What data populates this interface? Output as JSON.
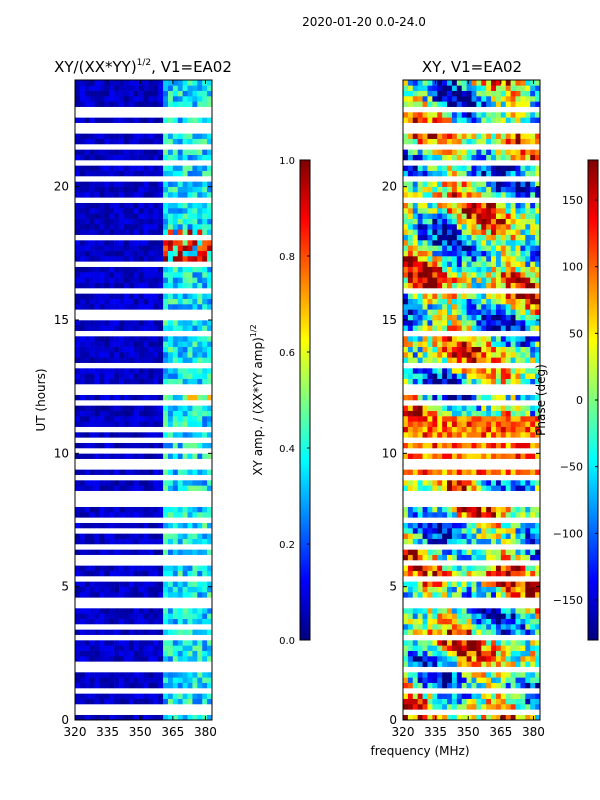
{
  "figure": {
    "suptitle": "2020-01-20 0.0-24.0",
    "xlabel": "frequency (MHz)"
  },
  "colormap": [
    "#00007f",
    "#0000ff",
    "#007fff",
    "#00ffff",
    "#7fff7f",
    "#ffff00",
    "#ff7f00",
    "#ff0000",
    "#7f0000"
  ],
  "chart_data": [
    {
      "type": "heatmap",
      "title": "XY/(XX*YY)",
      "title_exponent": "1/2",
      "title_suffix": ", V1=EA02",
      "xlabel": "",
      "ylabel": "UT (hours)",
      "xlim": [
        320,
        383
      ],
      "ylim": [
        0,
        24
      ],
      "xticks": [
        "320",
        "335",
        "350",
        "365",
        "380"
      ],
      "xtick_values": [
        320,
        335,
        350,
        365,
        380
      ],
      "yticks": [
        "0",
        "5",
        "10",
        "15",
        "20"
      ],
      "ytick_values": [
        0,
        5,
        10,
        15,
        20
      ],
      "rfi_band_mhz": [
        361,
        382
      ],
      "flagged_hours": [
        0.35,
        0.45,
        1.1,
        1.9,
        2.05,
        2.6,
        3.2,
        3.5,
        4.3,
        4.55,
        5.2,
        5.8,
        6.0,
        6.2,
        6.5,
        7.1,
        7.6,
        8.05,
        8.25,
        8.5,
        9.2,
        9.6,
        10.0,
        10.5,
        11.0,
        11.8,
        12.3,
        12.4,
        12.55,
        13.3,
        14.5,
        15.2,
        16.1,
        16.8,
        17.1,
        17.6,
        18.1,
        19.2,
        19.5,
        19.8,
        20.3,
        20.4,
        20.9,
        21.5,
        22.1,
        22.3,
        22.6,
        23.0
      ],
      "colorbar": {
        "label_prefix": "XY amp. / (XX*YY amp)",
        "label_exponent": "1/2",
        "range": [
          0.0,
          1.0
        ],
        "ticks": [
          "0.0",
          "0.2",
          "0.4",
          "0.6",
          "0.8",
          "1.0"
        ],
        "tick_values": [
          0.0,
          0.2,
          0.4,
          0.6,
          0.8,
          1.0
        ]
      }
    },
    {
      "type": "heatmap",
      "title": "XY, V1=EA02",
      "xlabel": "",
      "ylabel": "",
      "xlim": [
        320,
        383
      ],
      "ylim": [
        0,
        24
      ],
      "xticks": [
        "320",
        "335",
        "350",
        "365",
        "380"
      ],
      "xtick_values": [
        320,
        335,
        350,
        365,
        380
      ],
      "yticks": [
        "0",
        "5",
        "10",
        "15",
        "20"
      ],
      "ytick_values": [
        0,
        5,
        10,
        15,
        20
      ],
      "flagged_hours": [
        0.35,
        1.1,
        1.9,
        2.6,
        3.2,
        4.3,
        4.55,
        5.2,
        5.8,
        6.5,
        7.6,
        8.05,
        8.25,
        8.5,
        9.2,
        9.6,
        10.0,
        10.5,
        11.8,
        12.3,
        12.4,
        12.55,
        13.3,
        14.5,
        16.1,
        16.8,
        17.6,
        19.5,
        20.3,
        20.9,
        21.5,
        22.1,
        22.3,
        23.0
      ],
      "colorbar": {
        "label": "Phase (deg)",
        "range": [
          -180,
          180
        ],
        "ticks": [
          "−150",
          "−100",
          "−50",
          "0",
          "50",
          "100",
          "150"
        ],
        "tick_values": [
          -150,
          -100,
          -50,
          0,
          50,
          100,
          150
        ]
      }
    }
  ]
}
